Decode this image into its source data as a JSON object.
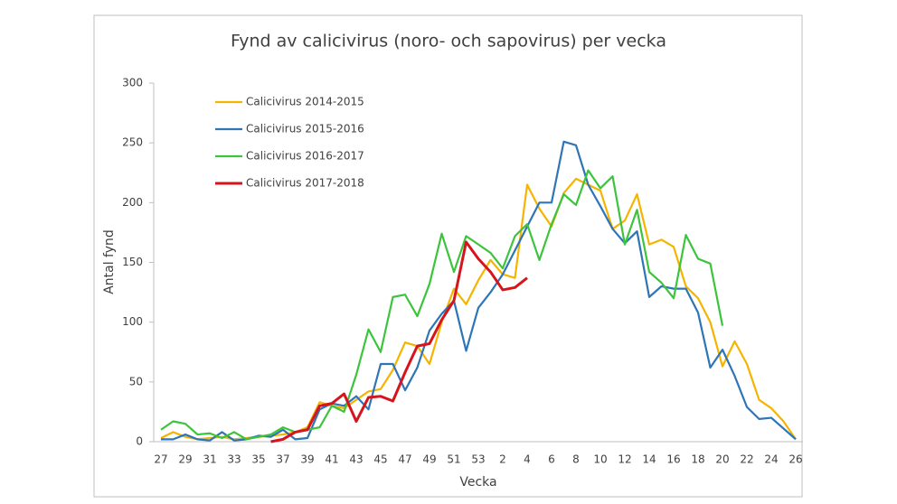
{
  "chart_data": {
    "type": "line",
    "title": "Fynd av calicivirus (noro- och sapovirus) per vecka",
    "xlabel": "Vecka",
    "ylabel": "Antal fynd",
    "categories": [
      "27",
      null,
      "29",
      null,
      "31",
      null,
      "33",
      null,
      "35",
      null,
      "37",
      null,
      "39",
      null,
      "41",
      null,
      "43",
      null,
      "45",
      null,
      "47",
      null,
      "49",
      null,
      "51",
      null,
      "53",
      null,
      "2",
      null,
      "4",
      null,
      "6",
      null,
      "8",
      null,
      "10",
      null,
      "12",
      null,
      "14",
      null,
      "16",
      null,
      "18",
      null,
      "20",
      null,
      "22",
      null,
      "24",
      null,
      "26"
    ],
    "ylim": [
      0,
      300
    ],
    "yticks": [
      0,
      50,
      100,
      150,
      200,
      250,
      300
    ],
    "grid": false,
    "legend": "upper left",
    "series": [
      {
        "name": "Calicivirus 2014-2015",
        "color": "#f5b400",
        "values": [
          3,
          8,
          4,
          2,
          3,
          4,
          2,
          3,
          4,
          5,
          6,
          8,
          12,
          33,
          30,
          28,
          35,
          42,
          44,
          60,
          83,
          80,
          65,
          100,
          128,
          115,
          135,
          152,
          140,
          137,
          215,
          195,
          180,
          208,
          220,
          215,
          210,
          178,
          185,
          207,
          165,
          169,
          163,
          130,
          120,
          100,
          63,
          84,
          65,
          35,
          28,
          17,
          2
        ]
      },
      {
        "name": "Calicivirus 2015-2016",
        "color": "#2e75b6",
        "values": [
          2,
          2,
          6,
          2,
          1,
          8,
          1,
          2,
          5,
          4,
          10,
          2,
          3,
          27,
          32,
          30,
          38,
          27,
          65,
          65,
          43,
          62,
          93,
          107,
          118,
          76,
          112,
          125,
          140,
          160,
          180,
          200,
          200,
          251,
          248,
          215,
          197,
          178,
          166,
          176,
          121,
          130,
          128,
          128,
          108,
          62,
          77,
          55,
          29,
          19,
          20,
          11,
          2
        ]
      },
      {
        "name": "Calicivirus 2016-2017",
        "color": "#3cc43c",
        "values": [
          10,
          17,
          15,
          6,
          7,
          3,
          8,
          2,
          4,
          6,
          12,
          8,
          10,
          12,
          30,
          25,
          56,
          94,
          75,
          121,
          123,
          105,
          132,
          174,
          142,
          172,
          165,
          158,
          145,
          172,
          182,
          152,
          182,
          207,
          198,
          227,
          212,
          222,
          165,
          194,
          142,
          133,
          120,
          173,
          153,
          149,
          97,
          null,
          null,
          null,
          null,
          null,
          null
        ]
      },
      {
        "name": "Calicivirus 2017-2018",
        "color": "#d6141c",
        "values": [
          null,
          null,
          null,
          null,
          null,
          null,
          null,
          null,
          null,
          0,
          2,
          8,
          10,
          30,
          32,
          40,
          17,
          37,
          38,
          34,
          58,
          80,
          82,
          102,
          118,
          167,
          153,
          142,
          127,
          129,
          137,
          null,
          null,
          null,
          null,
          null,
          null,
          null,
          null,
          null,
          null,
          null,
          null,
          null,
          null,
          null,
          null,
          null,
          null,
          null,
          null,
          null,
          null
        ]
      }
    ]
  }
}
